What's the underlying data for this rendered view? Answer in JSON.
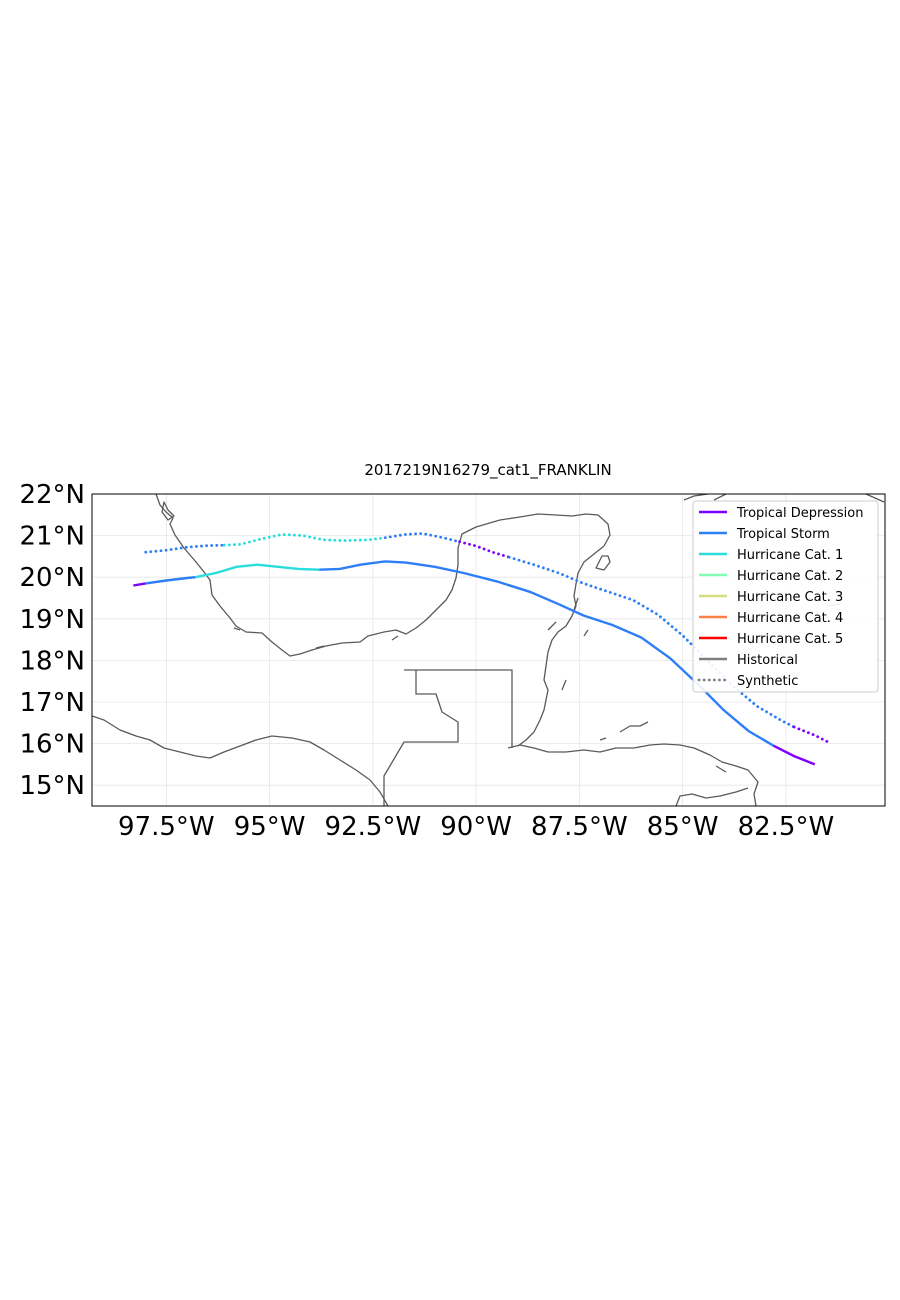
{
  "chart_data": {
    "type": "map",
    "title": "2017219N16279_cat1_FRANKLIN",
    "extent": {
      "lon": [
        -99.3,
        -80.1
      ],
      "lat": [
        14.5,
        22.0
      ]
    },
    "xticks": [
      {
        "value": -97.5,
        "label": "97.5°W"
      },
      {
        "value": -95.0,
        "label": "95°W"
      },
      {
        "value": -92.5,
        "label": "92.5°W"
      },
      {
        "value": -90.0,
        "label": "90°W"
      },
      {
        "value": -87.5,
        "label": "87.5°W"
      },
      {
        "value": -85.0,
        "label": "85°W"
      },
      {
        "value": -82.5,
        "label": "82.5°W"
      }
    ],
    "yticks": [
      {
        "value": 22,
        "label": "22°N"
      },
      {
        "value": 21,
        "label": "21°N"
      },
      {
        "value": 20,
        "label": "20°N"
      },
      {
        "value": 19,
        "label": "19°N"
      },
      {
        "value": 18,
        "label": "18°N"
      },
      {
        "value": 17,
        "label": "17°N"
      },
      {
        "value": 16,
        "label": "16°N"
      },
      {
        "value": 15,
        "label": "15°N"
      }
    ],
    "grid": true,
    "legend_position": "upper-right",
    "legend": [
      {
        "label": "Tropical Depression",
        "color": "#7f00ff",
        "style": "solid"
      },
      {
        "label": "Tropical Storm",
        "color": "#2e7ef7",
        "style": "solid"
      },
      {
        "label": "Hurricane Cat. 1",
        "color": "#2adddd",
        "style": "solid"
      },
      {
        "label": "Hurricane Cat. 2",
        "color": "#80ffb4",
        "style": "solid"
      },
      {
        "label": "Hurricane Cat. 3",
        "color": "#d4dd80",
        "style": "solid"
      },
      {
        "label": "Hurricane Cat. 4",
        "color": "#ff8147",
        "style": "solid"
      },
      {
        "label": "Hurricane Cat. 5",
        "color": "#ff0000",
        "style": "solid"
      },
      {
        "label": "Historical",
        "color": "#808080",
        "style": "solid"
      },
      {
        "label": "Synthetic",
        "color": "#808080",
        "style": "dotted"
      }
    ],
    "tracks": [
      {
        "kind": "historical",
        "segments": [
          {
            "category": "Tropical Depression",
            "points": [
              [
                -98.3,
                19.8
              ],
              [
                -98.0,
                19.85
              ]
            ]
          },
          {
            "category": "Tropical Storm",
            "points": [
              [
                -98.0,
                19.85
              ],
              [
                -97.5,
                19.92
              ],
              [
                -97.0,
                19.98
              ],
              [
                -96.8,
                20.0
              ]
            ]
          },
          {
            "category": "Hurricane Cat. 1",
            "points": [
              [
                -96.8,
                20.0
              ],
              [
                -96.3,
                20.1
              ],
              [
                -95.8,
                20.25
              ],
              [
                -95.3,
                20.3
              ],
              [
                -94.8,
                20.25
              ],
              [
                -94.3,
                20.2
              ],
              [
                -93.8,
                20.18
              ]
            ]
          },
          {
            "category": "Tropical Storm",
            "points": [
              [
                -93.8,
                20.18
              ],
              [
                -93.3,
                20.2
              ],
              [
                -92.8,
                20.3
              ],
              [
                -92.2,
                20.38
              ],
              [
                -91.7,
                20.35
              ],
              [
                -91.0,
                20.25
              ],
              [
                -90.3,
                20.1
              ],
              [
                -89.5,
                19.9
              ],
              [
                -88.7,
                19.65
              ],
              [
                -88.0,
                19.35
              ],
              [
                -87.4,
                19.08
              ],
              [
                -86.7,
                18.85
              ],
              [
                -86.0,
                18.55
              ],
              [
                -85.3,
                18.05
              ],
              [
                -84.6,
                17.4
              ],
              [
                -84.0,
                16.8
              ],
              [
                -83.4,
                16.3
              ],
              [
                -82.8,
                15.95
              ]
            ]
          },
          {
            "category": "Tropical Depression",
            "points": [
              [
                -82.8,
                15.95
              ],
              [
                -82.3,
                15.7
              ],
              [
                -81.8,
                15.5
              ]
            ]
          }
        ]
      },
      {
        "kind": "synthetic",
        "segments": [
          {
            "category": "Tropical Storm",
            "points": [
              [
                -98.0,
                20.6
              ],
              [
                -97.5,
                20.65
              ],
              [
                -97.0,
                20.72
              ],
              [
                -96.5,
                20.76
              ],
              [
                -96.1,
                20.77
              ]
            ]
          },
          {
            "category": "Hurricane Cat. 1",
            "points": [
              [
                -96.1,
                20.77
              ],
              [
                -95.7,
                20.79
              ],
              [
                -95.2,
                20.92
              ],
              [
                -94.7,
                21.03
              ],
              [
                -94.2,
                21.0
              ],
              [
                -93.7,
                20.9
              ],
              [
                -93.2,
                20.88
              ],
              [
                -92.6,
                20.9
              ],
              [
                -92.2,
                20.95
              ]
            ]
          },
          {
            "category": "Tropical Storm",
            "points": [
              [
                -92.2,
                20.95
              ],
              [
                -91.7,
                21.03
              ],
              [
                -91.3,
                21.05
              ],
              [
                -90.8,
                20.95
              ],
              [
                -90.4,
                20.85
              ]
            ]
          },
          {
            "category": "Tropical Depression",
            "points": [
              [
                -90.4,
                20.85
              ],
              [
                -90.0,
                20.75
              ],
              [
                -89.6,
                20.6
              ],
              [
                -89.2,
                20.48
              ]
            ]
          },
          {
            "category": "Tropical Storm",
            "points": [
              [
                -89.2,
                20.48
              ],
              [
                -88.6,
                20.3
              ],
              [
                -88.0,
                20.1
              ],
              [
                -87.4,
                19.85
              ],
              [
                -86.8,
                19.65
              ],
              [
                -86.2,
                19.45
              ],
              [
                -85.6,
                19.1
              ],
              [
                -85.0,
                18.6
              ],
              [
                -84.4,
                18.0
              ],
              [
                -83.8,
                17.4
              ],
              [
                -83.2,
                16.9
              ],
              [
                -82.6,
                16.55
              ],
              [
                -82.3,
                16.4
              ]
            ]
          },
          {
            "category": "Tropical Depression",
            "points": [
              [
                -82.3,
                16.4
              ],
              [
                -81.8,
                16.2
              ],
              [
                -81.4,
                16.0
              ]
            ]
          }
        ]
      }
    ]
  }
}
